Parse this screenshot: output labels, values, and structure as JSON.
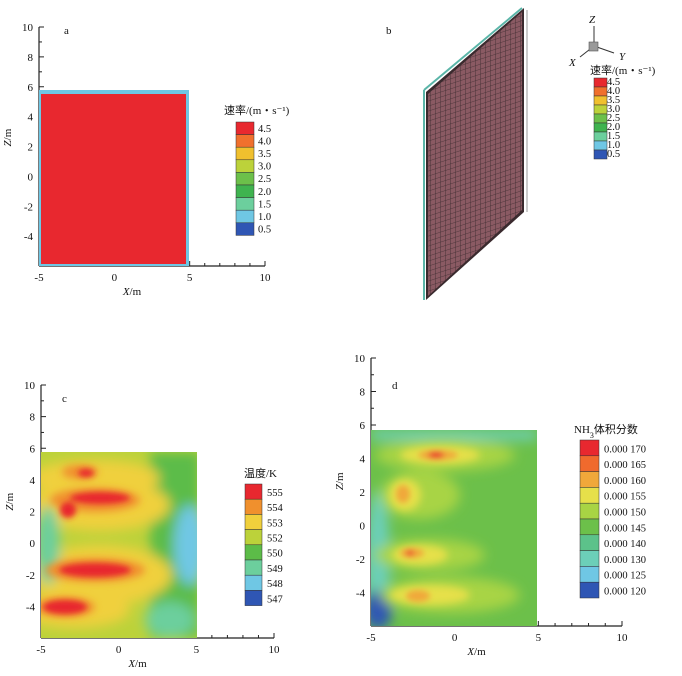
{
  "chart_data": [
    {
      "id": "a",
      "type": "heatmap",
      "panel_label": "a",
      "xlabel_var": "X",
      "xlabel_unit": "/m",
      "ylabel_var": "Z",
      "ylabel_unit": "/m",
      "xlim": [
        -5,
        10
      ],
      "ylim": [
        -6,
        10
      ],
      "xticks": [
        "-5",
        "0",
        "5",
        "10"
      ],
      "yticks": [
        "-4",
        "-2",
        "0",
        "2",
        "4",
        "6",
        "8",
        "10"
      ],
      "legend": {
        "title": "速率/(m・s⁻¹)",
        "labels": [
          "4.5",
          "4.0",
          "3.5",
          "3.0",
          "2.5",
          "2.0",
          "1.5",
          "1.0",
          "0.5"
        ],
        "colors": [
          "#e8282f",
          "#f0702d",
          "#f0c02e",
          "#bcd23a",
          "#6cc04a",
          "#3fb34f",
          "#6ccf9d",
          "#6fc7e4",
          "#2f56b4"
        ]
      },
      "field_range": {
        "x": [
          -5,
          5
        ],
        "z": [
          -6,
          6
        ]
      },
      "description_value": "uniform ~4.5 m/s"
    },
    {
      "id": "b",
      "type": "other",
      "panel_label": "b",
      "axis_labels": {
        "z": "Z",
        "x": "X",
        "y": "Y"
      },
      "legend": {
        "title": "速率/(m・s⁻¹)",
        "labels": [
          "4.5",
          "4.0",
          "3.5",
          "3.0",
          "2.5",
          "2.0",
          "1.5",
          "1.0",
          "0.5"
        ],
        "colors": [
          "#e8282f",
          "#f0702d",
          "#f0c02e",
          "#bcd23a",
          "#6cc04a",
          "#3fb34f",
          "#6ccf9d",
          "#6fc7e4",
          "#2f56b4"
        ]
      }
    },
    {
      "id": "c",
      "type": "heatmap",
      "panel_label": "c",
      "xlabel_var": "X",
      "xlabel_unit": "/m",
      "ylabel_var": "Z",
      "ylabel_unit": "/m",
      "xlim": [
        -5,
        10
      ],
      "ylim": [
        -6,
        10
      ],
      "xticks": [
        "-5",
        "0",
        "5",
        "10"
      ],
      "yticks": [
        "-4",
        "-2",
        "0",
        "2",
        "4",
        "6",
        "8",
        "10"
      ],
      "legend": {
        "title": "温度/K",
        "labels": [
          "555",
          "554",
          "553",
          "552",
          "550",
          "549",
          "548",
          "547"
        ],
        "colors": [
          "#e8282f",
          "#f0902d",
          "#f0d03c",
          "#bcd23a",
          "#5cbc48",
          "#6ccf9d",
          "#6fc7e4",
          "#2f56b4"
        ]
      },
      "field_range": {
        "x": [
          -5,
          5
        ],
        "z": [
          -6,
          6
        ]
      }
    },
    {
      "id": "d",
      "type": "heatmap",
      "panel_label": "d",
      "xlabel_var": "X",
      "xlabel_unit": "/m",
      "ylabel_var": "Z",
      "ylabel_unit": "/m",
      "xlim": [
        -5,
        10
      ],
      "ylim": [
        -6,
        10
      ],
      "xticks": [
        "-5",
        "0",
        "5",
        "10"
      ],
      "yticks": [
        "-4",
        "-2",
        "0",
        "2",
        "4",
        "6",
        "8",
        "10"
      ],
      "legend": {
        "title_prefix": "NH",
        "title_sub": "3",
        "title_suffix": "体积分数",
        "labels": [
          "0.000 170",
          "0.000 165",
          "0.000 160",
          "0.000 155",
          "0.000 150",
          "0.000 145",
          "0.000 140",
          "0.000 130",
          "0.000 125",
          "0.000 120"
        ],
        "colors": [
          "#e8282f",
          "#f06a2d",
          "#f0a83a",
          "#e6e04a",
          "#a8d444",
          "#6cc04a",
          "#5cc28a",
          "#6ccfb8",
          "#6fc7e4",
          "#2f56b4"
        ]
      },
      "field_range": {
        "x": [
          -5,
          5
        ],
        "z": [
          -6,
          6
        ]
      }
    }
  ]
}
